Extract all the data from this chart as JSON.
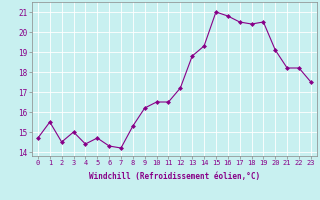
{
  "x": [
    0,
    1,
    2,
    3,
    4,
    5,
    6,
    7,
    8,
    9,
    10,
    11,
    12,
    13,
    14,
    15,
    16,
    17,
    18,
    19,
    20,
    21,
    22,
    23
  ],
  "y": [
    14.7,
    15.5,
    14.5,
    15.0,
    14.4,
    14.7,
    14.3,
    14.2,
    15.3,
    16.2,
    16.5,
    16.5,
    17.2,
    18.8,
    19.3,
    21.0,
    20.8,
    20.5,
    20.4,
    20.5,
    19.1,
    18.2,
    18.2,
    17.5
  ],
  "xlim": [
    -0.5,
    23.5
  ],
  "ylim": [
    13.8,
    21.5
  ],
  "yticks": [
    14,
    15,
    16,
    17,
    18,
    19,
    20,
    21
  ],
  "xticks": [
    0,
    1,
    2,
    3,
    4,
    5,
    6,
    7,
    8,
    9,
    10,
    11,
    12,
    13,
    14,
    15,
    16,
    17,
    18,
    19,
    20,
    21,
    22,
    23
  ],
  "xlabel": "Windchill (Refroidissement éolien,°C)",
  "line_color": "#880088",
  "marker": "D",
  "marker_size": 2,
  "bg_color": "#c8f0f0",
  "grid_color": "#ffffff",
  "tick_fontsize": 5,
  "xlabel_fontsize": 5.5
}
